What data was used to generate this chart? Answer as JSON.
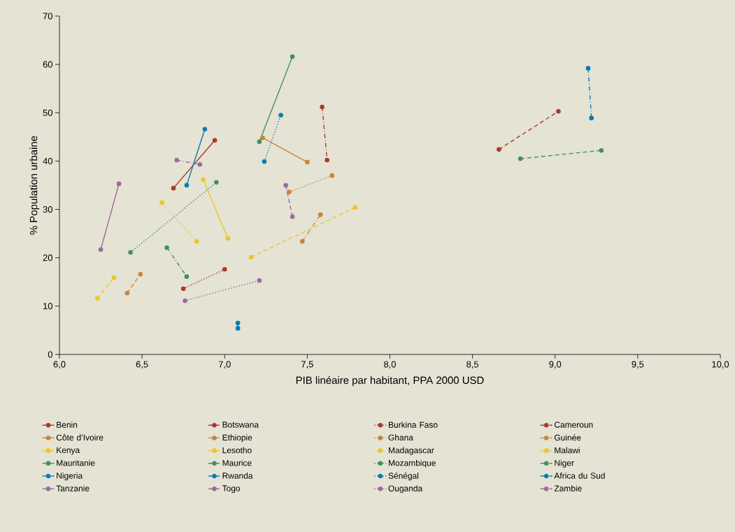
{
  "chart_data": {
    "type": "line",
    "xlabel": "PIB linéaire par habitant, PPA 2000 USD",
    "ylabel": "% Population urbaine",
    "xlim": [
      6,
      10
    ],
    "ylim": [
      0,
      70
    ],
    "xticks": [
      {
        "value": 6,
        "label": "6,0"
      },
      {
        "value": 6.5,
        "label": "6,5"
      },
      {
        "value": 7,
        "label": "7,0"
      },
      {
        "value": 7.5,
        "label": "7,5"
      },
      {
        "value": 8,
        "label": "8,0"
      },
      {
        "value": 8.5,
        "label": "8,5"
      },
      {
        "value": 9,
        "label": "9,0"
      },
      {
        "value": 9.5,
        "label": "9,5"
      },
      {
        "value": 10,
        "label": "10,0"
      }
    ],
    "yticks": [
      0,
      10,
      20,
      30,
      40,
      50,
      60,
      70
    ],
    "marker": "circle",
    "legend": "bottom",
    "grid": false,
    "series": [
      {
        "name": "Benin",
        "color": "#a83a2c",
        "line_style": "solid",
        "x": [
          6.69,
          6.94
        ],
        "values": [
          34.4,
          44.3
        ]
      },
      {
        "name": "Botswana",
        "color": "#a83a2c",
        "line_style": "dashed",
        "x": [
          8.66,
          9.02
        ],
        "values": [
          42.4,
          50.3
        ]
      },
      {
        "name": "Burkina Faso",
        "color": "#a83a2c",
        "line_style": "dotted",
        "x": [
          6.75,
          7.0
        ],
        "values": [
          13.6,
          17.6
        ]
      },
      {
        "name": "Cameroun",
        "color": "#a83a2c",
        "line_style": "dashdot",
        "x": [
          7.59,
          7.62
        ],
        "values": [
          51.2,
          40.2
        ]
      },
      {
        "name": "Côte d’Ivoire",
        "color": "#c9843a",
        "line_style": "solid",
        "x": [
          7.23,
          7.5
        ],
        "values": [
          44.8,
          39.8
        ]
      },
      {
        "name": "Ethiopie",
        "color": "#c9843a",
        "line_style": "dashed",
        "x": [
          6.41,
          6.49
        ],
        "values": [
          12.7,
          16.6
        ]
      },
      {
        "name": "Ghana",
        "color": "#c9843a",
        "line_style": "dotted",
        "x": [
          7.39,
          7.65
        ],
        "values": [
          33.6,
          37.0
        ]
      },
      {
        "name": "Guinée",
        "color": "#c9843a",
        "line_style": "dashdot",
        "x": [
          7.47,
          7.58
        ],
        "values": [
          23.4,
          28.9
        ]
      },
      {
        "name": "Kenya",
        "color": "#ecc52a",
        "line_style": "solid",
        "x": [
          6.87,
          7.02
        ],
        "values": [
          36.2,
          24.0
        ]
      },
      {
        "name": "Lesotho",
        "color": "#ecc52a",
        "line_style": "dashed",
        "x": [
          7.16,
          7.79
        ],
        "values": [
          20.1,
          30.4
        ]
      },
      {
        "name": "Madagascar",
        "color": "#ecc52a",
        "line_style": "dotted",
        "x": [
          6.62,
          6.83
        ],
        "values": [
          31.4,
          23.4
        ]
      },
      {
        "name": "Malawi",
        "color": "#ecc52a",
        "line_style": "dashed",
        "x": [
          6.23,
          6.33
        ],
        "values": [
          11.6,
          15.9
        ]
      },
      {
        "name": "Mauritanie",
        "color": "#3d9360",
        "line_style": "solid",
        "x": [
          7.21,
          7.41
        ],
        "values": [
          44.0,
          61.6
        ]
      },
      {
        "name": "Maurice",
        "color": "#3d9360",
        "line_style": "dashed",
        "x": [
          8.79,
          9.28
        ],
        "values": [
          40.5,
          42.2
        ]
      },
      {
        "name": "Mozambique",
        "color": "#3d9360",
        "line_style": "dotted",
        "x": [
          6.43,
          6.95
        ],
        "values": [
          21.1,
          35.6
        ]
      },
      {
        "name": "Niger",
        "color": "#3d9360",
        "line_style": "dashdot",
        "x": [
          6.65,
          6.77
        ],
        "values": [
          22.1,
          16.1
        ]
      },
      {
        "name": "Nigeria",
        "color": "#0a7bb3",
        "line_style": "solid",
        "x": [
          6.77,
          6.88
        ],
        "values": [
          35.0,
          46.6
        ]
      },
      {
        "name": "Rwanda",
        "color": "#0a7bb3",
        "line_style": "dashed",
        "x": [
          7.08,
          7.08
        ],
        "values": [
          6.5,
          5.4
        ]
      },
      {
        "name": "Sénégal",
        "color": "#0a7bb3",
        "line_style": "dotted",
        "x": [
          7.24,
          7.34
        ],
        "values": [
          39.9,
          49.5
        ]
      },
      {
        "name": "Africa du Sud",
        "color": "#0a7bb3",
        "line_style": "dashdot",
        "x": [
          9.2,
          9.22
        ],
        "values": [
          59.2,
          48.9
        ]
      },
      {
        "name": "Tanzanie",
        "color": "#9a6aa0",
        "line_style": "solid",
        "x": [
          6.25,
          6.36
        ],
        "values": [
          21.7,
          35.3
        ]
      },
      {
        "name": "Togo",
        "color": "#9a6aa0",
        "line_style": "dashed",
        "x": [
          7.37,
          7.41
        ],
        "values": [
          35.0,
          28.5
        ]
      },
      {
        "name": "Ouganda",
        "color": "#9a6aa0",
        "line_style": "dotted",
        "x": [
          6.76,
          7.21
        ],
        "values": [
          11.1,
          15.3
        ]
      },
      {
        "name": "Zambie",
        "color": "#9a6aa0",
        "line_style": "dashdot",
        "x": [
          6.71,
          6.85
        ],
        "values": [
          40.2,
          39.3
        ]
      }
    ]
  }
}
